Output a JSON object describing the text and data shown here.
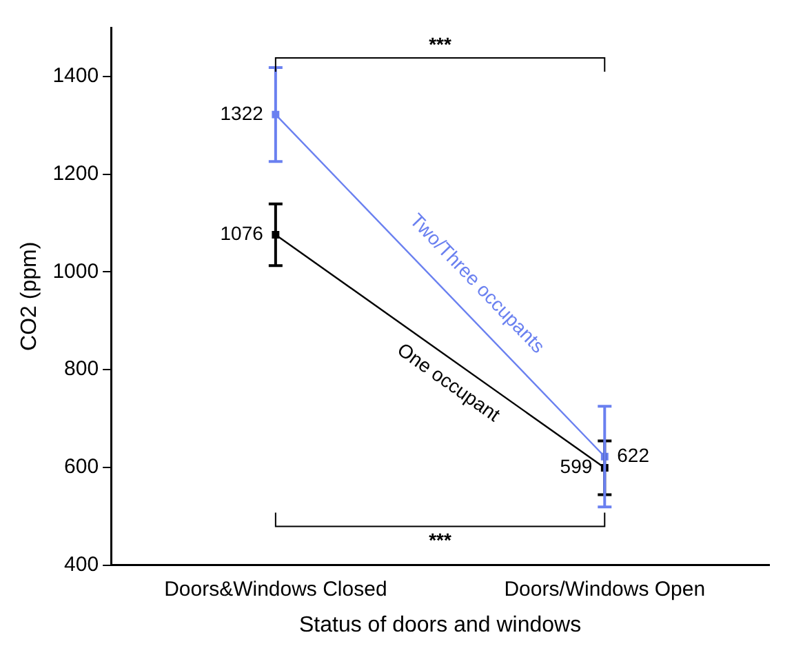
{
  "chart_data": {
    "type": "line",
    "xlabel": "Status of doors and windows",
    "ylabel": "CO2 (ppm)",
    "categories": [
      "Doors&Windows Closed",
      "Doors/Windows Open"
    ],
    "series": [
      {
        "name": "One occupant",
        "color": "#000000",
        "values": [
          1076,
          599
        ],
        "errors": [
          63,
          55
        ]
      },
      {
        "name": "Two/Three occupants",
        "color": "#6a80f0",
        "values": [
          1322,
          622
        ],
        "errors": [
          96,
          103
        ]
      }
    ],
    "ylim": [
      400,
      1500
    ],
    "yticks": [
      400,
      600,
      800,
      1000,
      1200,
      1400
    ],
    "data_labels": true,
    "grid": false,
    "legend": false,
    "marker": "square",
    "line_style": "solid",
    "annotations": [
      "***",
      "***"
    ]
  }
}
